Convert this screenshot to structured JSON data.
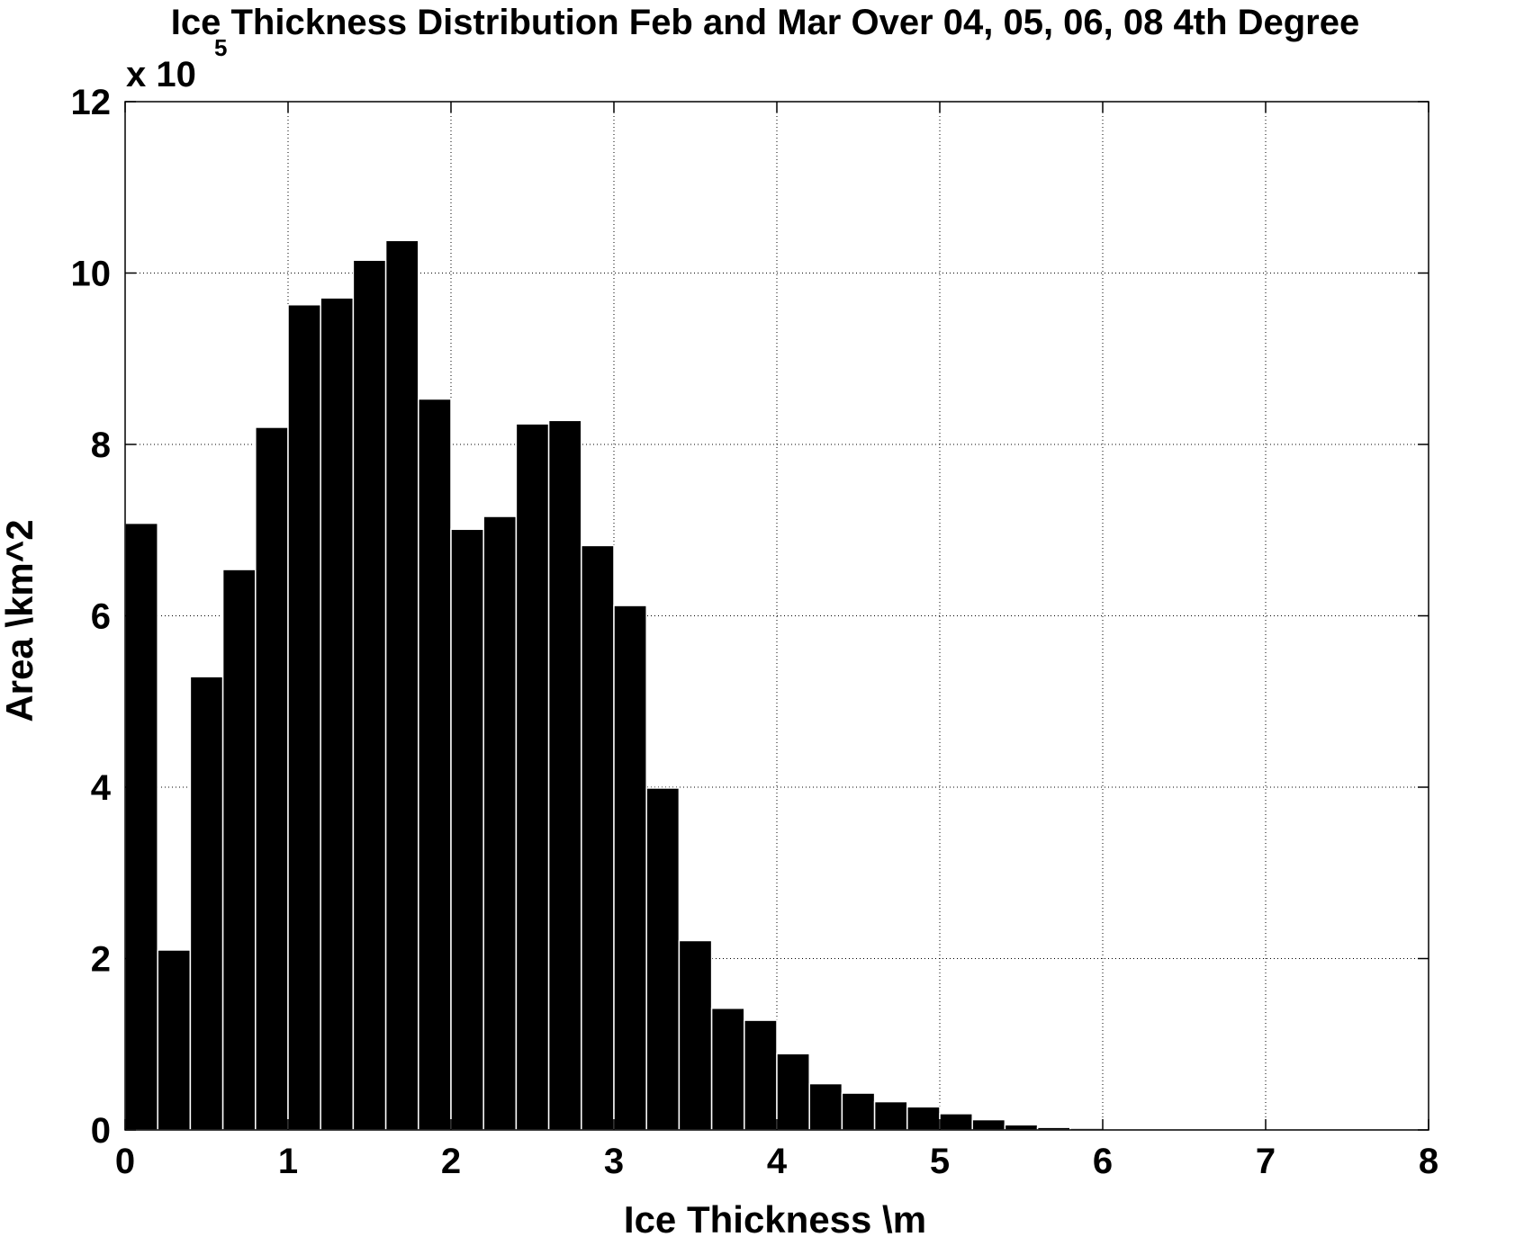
{
  "chart_data": {
    "type": "bar",
    "title": "Ice Thickness Distribution Feb and Mar Over 04, 05, 06, 08 4th Degree",
    "xlabel": "Ice Thickness \\m",
    "ylabel": "Area \\km^2",
    "y_multiplier": {
      "base": "x 10",
      "exponent": "5"
    },
    "xlim": [
      0,
      8
    ],
    "ylim": [
      0,
      12
    ],
    "xticks": [
      "0",
      "1",
      "2",
      "3",
      "4",
      "5",
      "6",
      "7",
      "8"
    ],
    "yticks": [
      "0",
      "2",
      "4",
      "6",
      "8",
      "10",
      "12"
    ],
    "grid": true,
    "bin_width": 0.2,
    "x": [
      0.1,
      0.3,
      0.5,
      0.7,
      0.9,
      1.1,
      1.3,
      1.5,
      1.7,
      1.9,
      2.1,
      2.3,
      2.5,
      2.7,
      2.9,
      3.1,
      3.3,
      3.5,
      3.7,
      3.9,
      4.1,
      4.3,
      4.5,
      4.7,
      4.9,
      5.1,
      5.3,
      5.5,
      5.7,
      5.9,
      6.1,
      6.3,
      6.5,
      6.7,
      6.9,
      7.1,
      7.3,
      7.5,
      7.7,
      7.9
    ],
    "values": [
      7.08,
      2.1,
      5.29,
      6.54,
      8.2,
      9.63,
      9.71,
      10.15,
      10.38,
      8.53,
      7.01,
      7.16,
      8.24,
      8.28,
      6.82,
      6.12,
      3.99,
      2.21,
      1.42,
      1.28,
      0.89,
      0.54,
      0.43,
      0.33,
      0.27,
      0.19,
      0.12,
      0.06,
      0.03,
      0.02,
      0.01,
      0.005,
      0.003,
      0.002,
      0.001,
      0.001,
      0.0,
      0.0,
      0.0,
      0.0
    ]
  }
}
